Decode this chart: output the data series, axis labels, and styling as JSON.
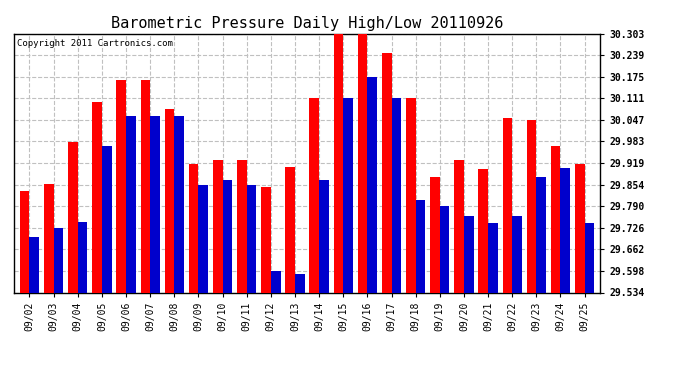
{
  "title": "Barometric Pressure Daily High/Low 20110926",
  "copyright": "Copyright 2011 Cartronics.com",
  "dates": [
    "09/02",
    "09/03",
    "09/04",
    "09/05",
    "09/06",
    "09/07",
    "09/08",
    "09/09",
    "09/10",
    "09/11",
    "09/12",
    "09/13",
    "09/14",
    "09/15",
    "09/16",
    "09/17",
    "09/18",
    "09/19",
    "09/20",
    "09/21",
    "09/22",
    "09/23",
    "09/24",
    "09/25"
  ],
  "highs": [
    29.836,
    29.856,
    29.982,
    30.1,
    30.165,
    30.165,
    30.08,
    29.916,
    29.928,
    29.928,
    29.848,
    29.908,
    30.111,
    30.303,
    30.303,
    30.245,
    30.111,
    29.878,
    29.928,
    29.9,
    30.052,
    30.047,
    29.97,
    29.916
  ],
  "lows": [
    29.7,
    29.726,
    29.745,
    29.97,
    30.06,
    30.06,
    30.06,
    29.854,
    29.868,
    29.854,
    29.598,
    29.59,
    29.868,
    30.111,
    30.175,
    30.111,
    29.81,
    29.79,
    29.762,
    29.74,
    29.762,
    29.876,
    29.905,
    29.74
  ],
  "ymin": 29.534,
  "ymax": 30.303,
  "yticks": [
    29.534,
    29.598,
    29.662,
    29.726,
    29.79,
    29.854,
    29.919,
    29.983,
    30.047,
    30.111,
    30.175,
    30.239,
    30.303
  ],
  "high_color": "#ff0000",
  "low_color": "#0000cc",
  "bg_color": "#ffffff",
  "grid_color": "#c0c0c0",
  "title_fontsize": 11,
  "copyright_fontsize": 6.5,
  "bar_width": 0.4
}
